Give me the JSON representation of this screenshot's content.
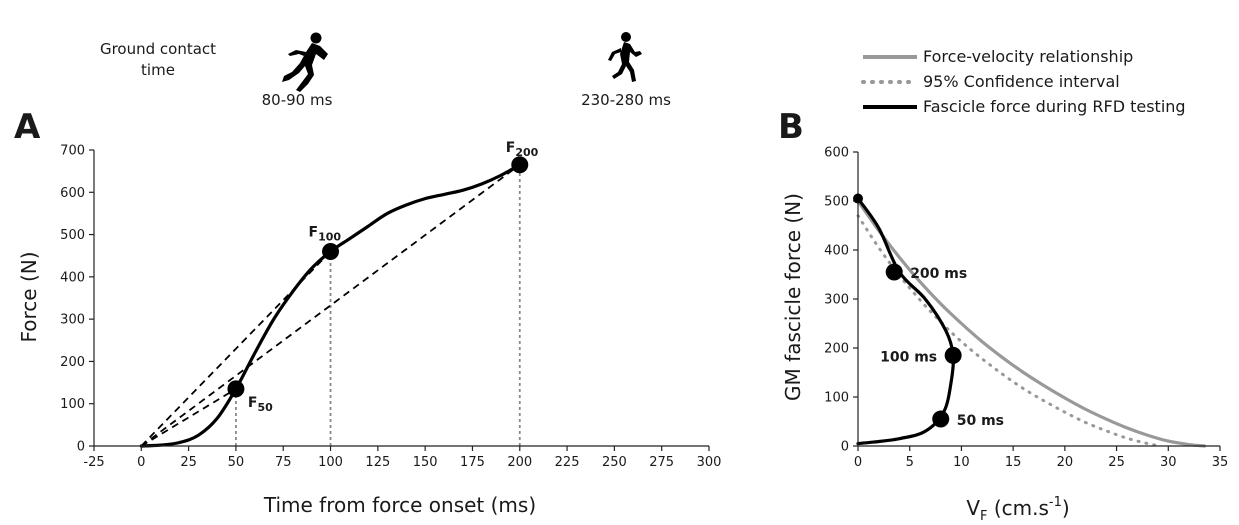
{
  "header": {
    "ground_contact_label": [
      "Ground contact",
      "time"
    ],
    "sprint": {
      "time_label": "80-90 ms",
      "icon": "sprinter-icon"
    },
    "run": {
      "time_label": "230-280 ms",
      "icon": "runner-icon"
    }
  },
  "legend": {
    "placement": "top-right",
    "items": [
      {
        "label": "Force-velocity relationship",
        "color": "#999999",
        "style": "solid"
      },
      {
        "label": "95% Confidence interval",
        "color": "#999999",
        "style": "dotted"
      },
      {
        "label": "Fascicle force during RFD testing",
        "color": "#000000",
        "style": "solid"
      }
    ]
  },
  "chart_data": [
    {
      "panel": "A",
      "type": "line",
      "xlabel": "Time from force onset (ms)",
      "ylabel": "Force (N)",
      "xlim": [
        -25,
        300
      ],
      "ylim": [
        0,
        700
      ],
      "xticks": [
        -25,
        0,
        25,
        50,
        75,
        100,
        125,
        150,
        175,
        200,
        225,
        250,
        275,
        300
      ],
      "yticks": [
        0,
        100,
        200,
        300,
        400,
        500,
        600,
        700
      ],
      "grid": false,
      "series": [
        {
          "style": "solid",
          "color": "#000000",
          "x": [
            0,
            10,
            20,
            30,
            40,
            50,
            60,
            70,
            80,
            90,
            100,
            110,
            120,
            130,
            140,
            150,
            160,
            170,
            180,
            190,
            200
          ],
          "y": [
            0,
            2,
            8,
            25,
            65,
            135,
            220,
            300,
            365,
            420,
            460,
            490,
            520,
            550,
            570,
            585,
            595,
            605,
            620,
            640,
            665
          ]
        }
      ],
      "reference_lines": [
        {
          "from": [
            0,
            0
          ],
          "to": [
            50,
            135
          ],
          "style": "dashed"
        },
        {
          "from": [
            0,
            0
          ],
          "to": [
            100,
            460
          ],
          "style": "dashed"
        },
        {
          "from": [
            0,
            0
          ],
          "to": [
            200,
            665
          ],
          "style": "dashed"
        }
      ],
      "vertical_guides": [
        50,
        100,
        200
      ],
      "markers": [
        {
          "x": 50,
          "y": 135,
          "label": "F",
          "sub": "50"
        },
        {
          "x": 100,
          "y": 460,
          "label": "F",
          "sub": "100"
        },
        {
          "x": 200,
          "y": 665,
          "label": "F",
          "sub": "200"
        }
      ]
    },
    {
      "panel": "B",
      "type": "line",
      "xlabel": "V",
      "xlabel_sub": "F",
      "xlabel_rest": " (cm.s",
      "xlabel_sup": "-1",
      "xlabel_end": ")",
      "ylabel": "GM fascicle force (N)",
      "xlim": [
        0,
        35
      ],
      "ylim": [
        0,
        600
      ],
      "xticks": [
        0,
        5,
        10,
        15,
        20,
        25,
        30,
        35
      ],
      "yticks": [
        0,
        100,
        200,
        300,
        400,
        500,
        600
      ],
      "grid": false,
      "series": [
        {
          "name": "Force-velocity relationship",
          "style": "solid",
          "color": "#999999",
          "x": [
            0,
            2,
            4,
            6,
            8,
            10,
            12,
            14,
            16,
            18,
            20,
            22,
            24,
            26,
            28,
            30,
            32,
            33.5
          ],
          "y": [
            500,
            440,
            385,
            335,
            290,
            250,
            213,
            180,
            150,
            123,
            98,
            75,
            55,
            37,
            22,
            10,
            3,
            0
          ]
        },
        {
          "name": "95% Confidence interval",
          "style": "dotted",
          "color": "#999999",
          "x": [
            0,
            2,
            4,
            6,
            8,
            10,
            12,
            14,
            16,
            18,
            20,
            22,
            24,
            26,
            28,
            29.3
          ],
          "y": [
            470,
            405,
            348,
            298,
            253,
            213,
            178,
            146,
            117,
            92,
            69,
            48,
            31,
            16,
            5,
            0
          ]
        },
        {
          "name": "Fascicle force during RFD testing",
          "style": "solid",
          "color": "#000000",
          "x": [
            0,
            2,
            4,
            6.5,
            8.5,
            9.2,
            9.0,
            8.3,
            6.5,
            4,
            1.5,
            0
          ],
          "y": [
            505,
            445,
            355,
            300,
            235,
            185,
            130,
            70,
            30,
            15,
            8,
            5
          ]
        }
      ],
      "markers": [
        {
          "x": 0,
          "y": 505,
          "label": "",
          "size": "small"
        },
        {
          "x": 3.5,
          "y": 355,
          "label": "200 ms",
          "side": "right"
        },
        {
          "x": 9.2,
          "y": 185,
          "label": "100 ms",
          "side": "left"
        },
        {
          "x": 8.0,
          "y": 55,
          "label": "50 ms",
          "side": "right"
        }
      ]
    }
  ]
}
